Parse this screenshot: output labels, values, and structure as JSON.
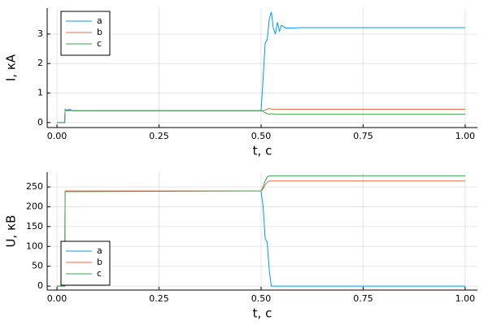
{
  "chart_data": [
    {
      "type": "line",
      "xlabel": "t, с",
      "ylabel": "I, кА",
      "x": [
        0,
        0.019,
        0.02,
        0.025,
        0.03,
        0.04,
        0.5,
        0.505,
        0.51,
        0.515,
        0.52,
        0.525,
        0.53,
        0.535,
        0.54,
        0.545,
        0.55,
        0.56,
        0.6,
        1.0
      ],
      "series": [
        {
          "name": "a",
          "color": "#009afa",
          "values": [
            0,
            0,
            0.45,
            0.42,
            0.45,
            0.4,
            0.4,
            1.5,
            2.7,
            2.8,
            3.5,
            3.75,
            3.2,
            3.0,
            3.4,
            3.1,
            3.3,
            3.2,
            3.22,
            3.22
          ]
        },
        {
          "name": "b",
          "color": "#e36f47",
          "values": [
            0,
            0,
            0.42,
            0.4,
            0.42,
            0.4,
            0.4,
            0.4,
            0.42,
            0.45,
            0.48,
            0.46,
            0.44,
            0.46,
            0.45,
            0.45,
            0.45,
            0.45,
            0.45,
            0.45
          ]
        },
        {
          "name": "c",
          "color": "#3ea44e",
          "values": [
            0,
            0,
            0.44,
            0.4,
            0.41,
            0.4,
            0.4,
            0.38,
            0.33,
            0.3,
            0.28,
            0.3,
            0.29,
            0.28,
            0.28,
            0.28,
            0.28,
            0.28,
            0.28,
            0.28
          ]
        }
      ],
      "xlim": [
        -0.024,
        1.03
      ],
      "ylim": [
        -0.17,
        3.88
      ],
      "xticks": [
        {
          "value": 0,
          "label": "0.00"
        },
        0.25,
        {
          "value": 0.5,
          "label": "0.50"
        },
        0.75,
        {
          "value": 1,
          "label": "1.00"
        }
      ],
      "yticks": [
        0,
        1,
        2,
        3
      ],
      "grid": true,
      "legend": "top-left"
    },
    {
      "type": "line",
      "xlabel": "t, с",
      "ylabel": "U, кВ",
      "x": [
        0,
        0.019,
        0.02,
        0.025,
        0.03,
        0.04,
        0.5,
        0.505,
        0.51,
        0.515,
        0.52,
        0.525,
        0.53,
        0.535,
        0.54,
        0.545,
        0.55,
        0.56,
        0.6,
        1.0
      ],
      "series": [
        {
          "name": "a",
          "color": "#009afa",
          "values": [
            0,
            0,
            240,
            240,
            240,
            240,
            240,
            200,
            120,
            110,
            40,
            0,
            0,
            0,
            0,
            0,
            0,
            0,
            0,
            0
          ]
        },
        {
          "name": "b",
          "color": "#e36f47",
          "values": [
            0,
            0,
            240,
            240,
            240,
            240,
            240,
            245,
            255,
            262,
            265,
            265,
            265,
            265,
            265,
            265,
            265,
            265,
            265,
            265
          ]
        },
        {
          "name": "c",
          "color": "#3ea44e",
          "values": [
            0,
            0,
            238,
            238,
            238,
            238,
            240,
            250,
            265,
            275,
            278,
            278,
            278,
            278,
            278,
            278,
            278,
            278,
            278,
            278
          ]
        }
      ],
      "xlim": [
        -0.024,
        1.03
      ],
      "ylim": [
        -10,
        287
      ],
      "xticks": [
        {
          "value": 0,
          "label": "0.00"
        },
        0.25,
        {
          "value": 0.5,
          "label": "0.50"
        },
        0.75,
        {
          "value": 1,
          "label": "1.00"
        }
      ],
      "yticks": [
        0,
        50,
        100,
        150,
        200,
        250
      ],
      "grid": true,
      "legend": "bottom-left"
    }
  ]
}
